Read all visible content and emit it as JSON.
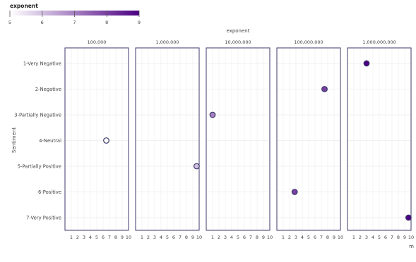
{
  "chart_data": {
    "type": "scatter",
    "facet_title": "exponent",
    "facets": [
      "100,000",
      "1,000,000",
      "10,000,000",
      "100,000,000",
      "1,000,000,000"
    ],
    "ylabel": "Sentiment",
    "categories": [
      "1-Very Negative",
      "2-Negative",
      "3-Partially Negative",
      "4-Neutral",
      "5-Partially Positive",
      "6-Positive",
      "7-Very Positive"
    ],
    "xticks": [
      1,
      2,
      3,
      4,
      5,
      6,
      7,
      8,
      9,
      10
    ],
    "xlim": [
      0,
      10
    ],
    "xlabel": "m",
    "color_legend": {
      "title": "exponent",
      "min": 5,
      "max": 9,
      "ticks": [
        5,
        6,
        7,
        8,
        9
      ],
      "low_color": "#ffffff",
      "high_color": "#4b0082"
    },
    "points": [
      {
        "facet": 4,
        "category": "1-Very Negative",
        "x": 3.0,
        "exponent": 9
      },
      {
        "facet": 3,
        "category": "2-Negative",
        "x": 7.5,
        "exponent": 8
      },
      {
        "facet": 2,
        "category": "3-Partially Negative",
        "x": 1.0,
        "exponent": 7
      },
      {
        "facet": 0,
        "category": "4-Neutral",
        "x": 6.5,
        "exponent": 5
      },
      {
        "facet": 1,
        "category": "5-Partially Positive",
        "x": 9.6,
        "exponent": 6
      },
      {
        "facet": 3,
        "category": "6-Positive",
        "x": 2.8,
        "exponent": 8
      },
      {
        "facet": 4,
        "category": "7-Very Positive",
        "x": 9.6,
        "exponent": 9
      }
    ]
  }
}
